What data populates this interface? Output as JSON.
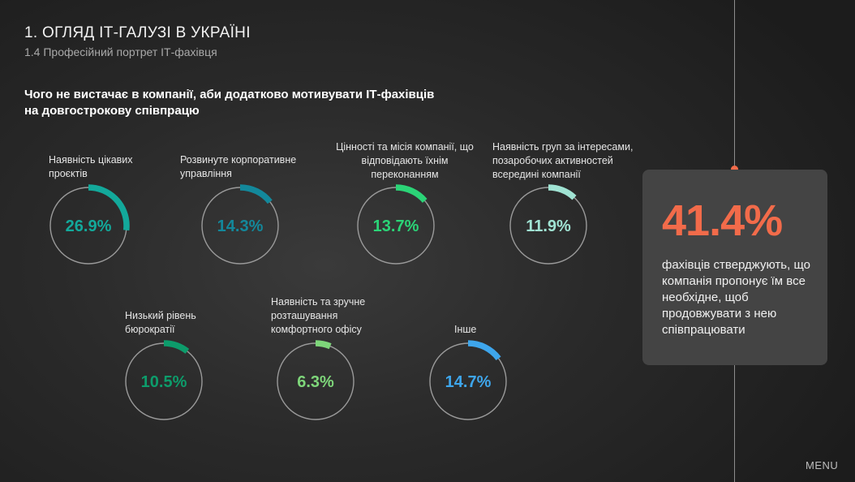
{
  "header": {
    "title": "1. ОГЛЯД ІТ-ГАЛУЗІ В УКРАЇНІ",
    "subtitle": "1.4 Професійний портрет ІТ-фахівця"
  },
  "chart_data": {
    "type": "gauge",
    "title": "Чого не вистачає в компанії, аби додатково мотивувати ІТ-фахівців на довгострокову співпрацю",
    "items": [
      {
        "label": "Наявність цікавих проєктів",
        "value": 26.9,
        "display": "26.9%",
        "color": "#13a99b"
      },
      {
        "label": "Розвинуте корпоративне управління",
        "value": 14.3,
        "display": "14.3%",
        "color": "#13889b"
      },
      {
        "label": "Цінності та місія компанії, що відповідають їхнім переконанням",
        "value": 13.7,
        "display": "13.7%",
        "color": "#2bd477"
      },
      {
        "label": "Наявність груп за інтересами, позаробочих активностей всередині компанії",
        "value": 11.9,
        "display": "11.9%",
        "color": "#a0e3d3"
      },
      {
        "label": "Низький рівень бюрократії",
        "value": 10.5,
        "display": "10.5%",
        "color": "#0d9c6b"
      },
      {
        "label": "Наявність та зручне розташування комфортного офісу",
        "value": 6.3,
        "display": "6.3%",
        "color": "#7ed67a"
      },
      {
        "label": "Інше",
        "value": 14.7,
        "display": "14.7%",
        "color": "#3ea6ec"
      }
    ]
  },
  "card": {
    "value": "41.4%",
    "text": "фахівців стверджують, що компанія пропонує їм все необхідне, щоб продовжувати з нею співпрацювати",
    "accent": "#f26b4a"
  },
  "menu": "MENU"
}
